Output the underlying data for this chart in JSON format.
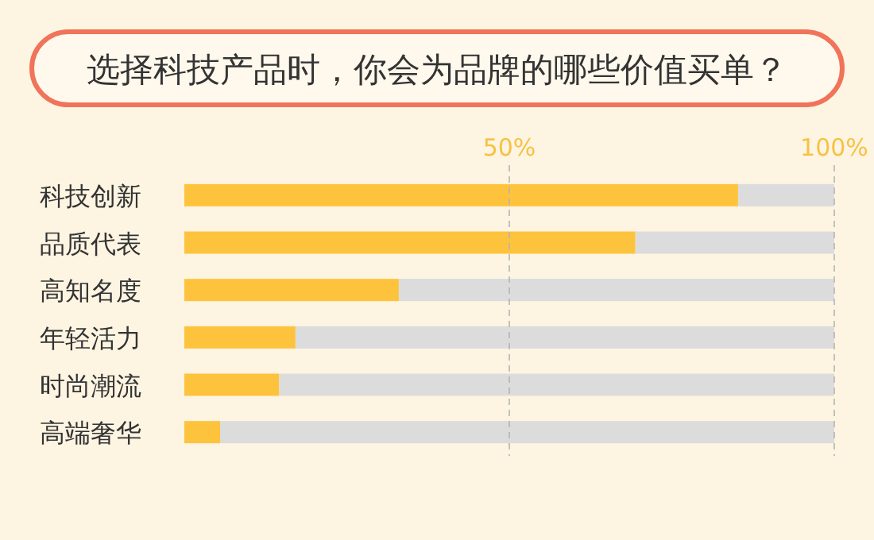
{
  "chart_data": {
    "type": "bar",
    "orientation": "horizontal",
    "stacked": true,
    "title": "选择科技产品时，你会为品牌的哪些价值买单？",
    "categories": [
      "科技创新",
      "品质代表",
      "高知名度",
      "年轻活力",
      "时尚潮流",
      "高端奢华"
    ],
    "series": [
      {
        "color": "#fec33c",
        "values": [
          85.2,
          69.4,
          33.0,
          17.1,
          14.6,
          5.5
        ]
      },
      {
        "color": "#dcdcdc",
        "values": [
          14.8,
          30.6,
          67.0,
          82.9,
          85.4,
          94.5
        ]
      }
    ],
    "xlim": [
      0,
      100
    ],
    "xticks": [
      {
        "value": 50,
        "label": "50%"
      },
      {
        "value": 100,
        "label": "100%"
      }
    ],
    "grid": "x"
  }
}
